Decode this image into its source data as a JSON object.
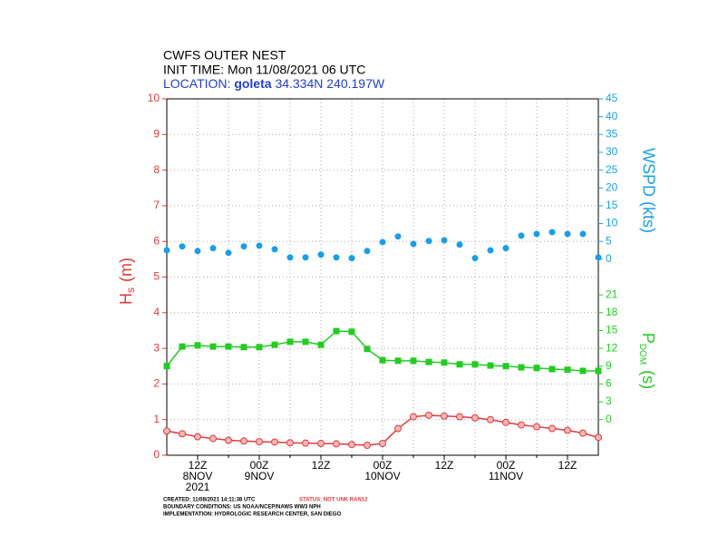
{
  "chart_data": {
    "type": "line",
    "title": "CWFS OUTER NEST",
    "subtitle": "INIT TIME: Mon 11/08/2021 06 UTC",
    "location": {
      "prefix": "LOCATION:",
      "name": "goleta",
      "coords": "34.334N 240.197W"
    },
    "y_label": {
      "main": "H",
      "sub": "s",
      "unit": "(m)"
    },
    "y2_label": "WSPD (kts)",
    "y3_label": {
      "main": "P",
      "sub": "DOM",
      "unit": "(s)"
    },
    "xlim": [
      0,
      84
    ],
    "xticks": [
      {
        "value": 6,
        "label": "12Z"
      },
      {
        "value": 18,
        "label": "00Z"
      },
      {
        "value": 30,
        "label": "12Z"
      },
      {
        "value": 42,
        "label": "00Z"
      },
      {
        "value": 54,
        "label": "12Z"
      },
      {
        "value": 66,
        "label": "00Z"
      },
      {
        "value": 78,
        "label": "12Z"
      }
    ],
    "x_minor_ticks": [
      12,
      24,
      36,
      48,
      60,
      72
    ],
    "x_date_labels": [
      {
        "value": 6,
        "label": "8NOV"
      },
      {
        "value": 18,
        "label": "9NOV"
      },
      {
        "value": 42,
        "label": "10NOV"
      },
      {
        "value": 66,
        "label": "11NOV"
      }
    ],
    "x_year_label": {
      "value": 6,
      "label": "2021"
    },
    "ylim": [
      0,
      10
    ],
    "yticks": [
      0,
      1,
      2,
      3,
      4,
      5,
      6,
      7,
      8,
      9,
      10
    ],
    "y2lim": [
      -55,
      45
    ],
    "y2ticks": [
      0,
      5,
      10,
      15,
      20,
      25,
      30,
      35,
      40,
      45
    ],
    "y3lim": [
      -6,
      54
    ],
    "y3ticks": [
      0,
      3,
      6,
      9,
      12,
      15,
      18,
      21
    ],
    "grid": true,
    "x": [
      0,
      3,
      6,
      9,
      12,
      15,
      18,
      21,
      24,
      27,
      30,
      33,
      36,
      39,
      42,
      45,
      48,
      51,
      54,
      57,
      60,
      63,
      66,
      69,
      72,
      75,
      78,
      81,
      84
    ],
    "series": [
      {
        "name": "Hs",
        "color": "#e03a3a",
        "axis": "y",
        "marker": "circle",
        "values": [
          0.68,
          0.6,
          0.52,
          0.47,
          0.42,
          0.4,
          0.38,
          0.37,
          0.35,
          0.34,
          0.33,
          0.32,
          0.3,
          0.28,
          0.33,
          0.75,
          1.08,
          1.12,
          1.1,
          1.08,
          1.05,
          1.0,
          0.92,
          0.85,
          0.8,
          0.75,
          0.7,
          0.62,
          0.5
        ]
      },
      {
        "name": "WSPD",
        "color": "#1a9ee8",
        "axis": "y2",
        "marker": "dot",
        "values": [
          2.5,
          3.6,
          2.3,
          3.1,
          1.8,
          3.6,
          3.8,
          2.8,
          0.5,
          0.5,
          1.3,
          0.5,
          0.3,
          2.3,
          4.8,
          6.4,
          4.3,
          5.1,
          5.3,
          4.1,
          0.3,
          2.5,
          3.1,
          6.6,
          7.1,
          7.6,
          7.1,
          7.1,
          0.5
        ]
      },
      {
        "name": "PDOM",
        "color": "#22cc22",
        "axis": "y3",
        "marker": "square",
        "values": [
          9.0,
          12.3,
          12.5,
          12.3,
          12.3,
          12.2,
          12.2,
          12.6,
          13.1,
          13.1,
          12.6,
          14.9,
          14.8,
          11.9,
          10.0,
          9.9,
          9.9,
          9.7,
          9.6,
          9.3,
          9.3,
          9.1,
          9.0,
          8.8,
          8.7,
          8.5,
          8.4,
          8.2,
          8.2
        ]
      }
    ],
    "footer": {
      "created": "CREATED: 11/08/2021 14:11:38 UTC",
      "status": "STATUS: NOT UNK RAN12",
      "boundary": "BOUNDARY CONDITIONS: US NOAA/NCEP/NAWS WW3 NPH",
      "implementation": "IMPLEMENTATION: HYDROLOGIC RESEARCH CENTER, SAN DIEGO"
    }
  }
}
